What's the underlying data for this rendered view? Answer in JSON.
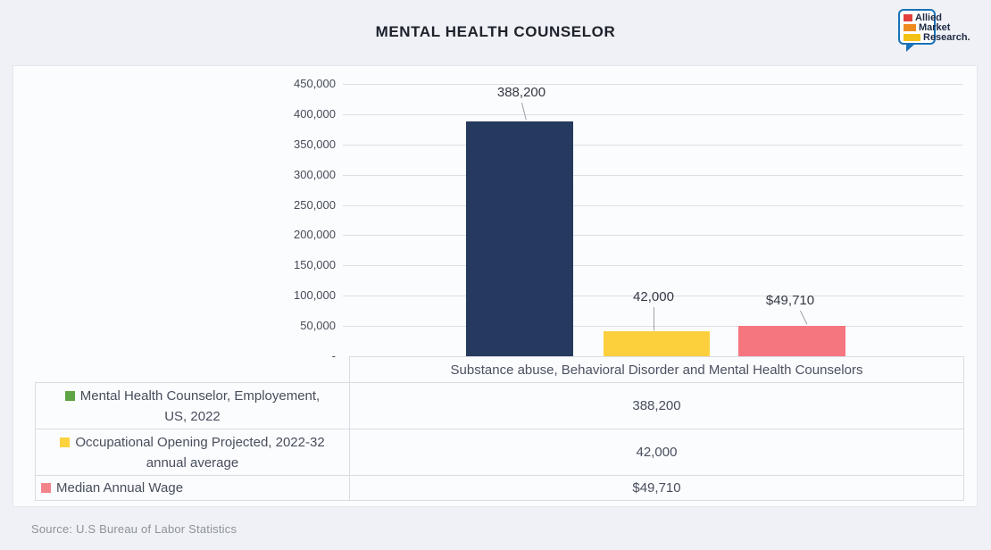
{
  "title": "MENTAL HEALTH COUNSELOR",
  "logo": {
    "words": [
      "Allied",
      "Market",
      "Research."
    ],
    "bar_colors": [
      "#e2403d",
      "#ef8c1f",
      "#f4c216"
    ],
    "bubble_color": "#1a72b8"
  },
  "source": "Source: U.S Bureau of Labor Statistics",
  "chart_data": {
    "type": "bar",
    "title": "MENTAL HEALTH COUNSELOR",
    "categories": [
      "Substance abuse, Behavioral Disorder and Mental Health Counselors"
    ],
    "series": [
      {
        "name": "Mental Health Counselor, Employement, US, 2022",
        "values": [
          388200
        ],
        "data_label": "388,200",
        "bar_color": "#253a5e",
        "legend_color": "#5ea345"
      },
      {
        "name": "Occupational Opening Projected, 2022-32 annual average",
        "values": [
          42000
        ],
        "data_label": "42,000",
        "bar_color": "#fcd03d",
        "legend_color": "#fcd23f"
      },
      {
        "name": "Median Annual Wage",
        "values": [
          49710
        ],
        "data_label": "$49,710",
        "bar_color": "#f5767f",
        "legend_color": "#f3838b"
      }
    ],
    "ylim": [
      0,
      450000
    ],
    "y_ticks": [
      "450,000",
      "400,000",
      "350,000",
      "300,000",
      "250,000",
      "200,000",
      "150,000",
      "100,000",
      "50,000",
      "-"
    ],
    "grid": true,
    "legend_position": "data-table-below"
  },
  "table": {
    "column_header": "Substance abuse, Behavioral Disorder and Mental Health Counselors",
    "rows": [
      {
        "legend_lines": [
          "Mental Health Counselor, Employement,",
          "US, 2022"
        ],
        "value": "388,200"
      },
      {
        "legend_lines": [
          "Occupational Opening Projected, 2022-32",
          "annual average"
        ],
        "value": "42,000"
      },
      {
        "legend_lines": [
          "Median Annual Wage",
          ""
        ],
        "value": "$49,710"
      }
    ]
  }
}
